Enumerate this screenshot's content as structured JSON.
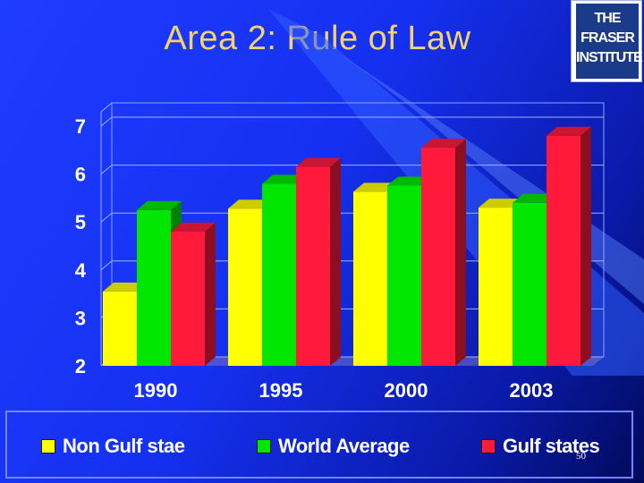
{
  "slide": {
    "title": "Area 2: Rule of Law",
    "page_number": "50"
  },
  "logo": {
    "line1": "THE FRASER",
    "line2": "INSTITUTE"
  },
  "colors": {
    "non_gulf": "#ffff00",
    "world_average": "#00e600",
    "gulf_states": "#ff1a3c",
    "title": "#f3d36b"
  },
  "chart_data": {
    "type": "bar",
    "categories": [
      "1990",
      "1995",
      "2000",
      "2003"
    ],
    "series": [
      {
        "name": "Non Gulf stae",
        "values": [
          3.55,
          5.28,
          5.63,
          5.3
        ]
      },
      {
        "name": "World Average",
        "values": [
          5.25,
          5.8,
          5.76,
          5.4
        ]
      },
      {
        "name": "Gulf states",
        "values": [
          4.8,
          6.15,
          6.55,
          6.8
        ]
      }
    ],
    "ylim": [
      2,
      7
    ],
    "yticks": [
      "2",
      "3",
      "4",
      "5",
      "6",
      "7"
    ],
    "grid": true,
    "legend": "bottom"
  }
}
